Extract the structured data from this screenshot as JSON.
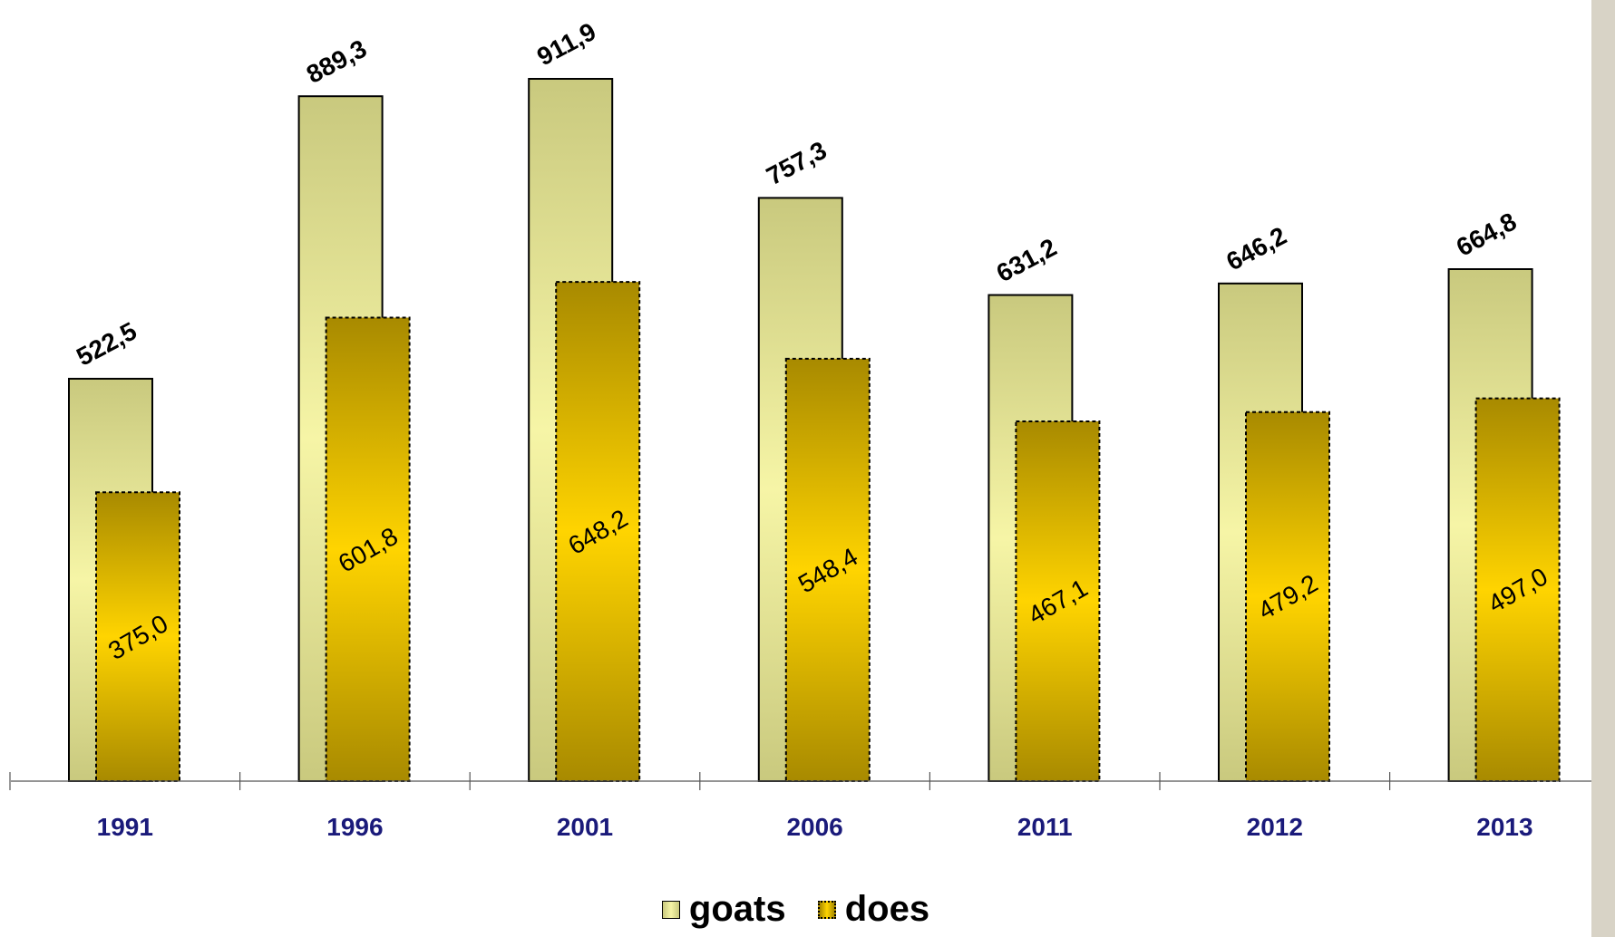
{
  "chart_data": {
    "type": "bar",
    "categories": [
      "1991",
      "1996",
      "2001",
      "2006",
      "2011",
      "2012",
      "2013"
    ],
    "series": [
      {
        "name": "goats",
        "values": [
          522.5,
          889.3,
          911.9,
          757.3,
          631.2,
          646.2,
          664.8
        ],
        "labels": [
          "522,5",
          "889,3",
          "911,9",
          "757,3",
          "631,2",
          "646,2",
          "664,8"
        ]
      },
      {
        "name": "does",
        "values": [
          375.0,
          601.8,
          648.2,
          548.4,
          467.1,
          479.2,
          497.0
        ],
        "labels": [
          "375,0",
          "601,8",
          "648,2",
          "548,4",
          "467,1",
          "479,2",
          "497,0"
        ]
      }
    ],
    "ylim": [
      0,
      1000
    ],
    "title": "",
    "xlabel": "",
    "ylabel": "",
    "grid": false,
    "legend": "bottom",
    "colors": {
      "goats_fill_edge": "#c9c97e",
      "goats_fill_mid": "#f6f5a6",
      "does_fill_edge": "#a88a00",
      "does_fill_mid": "#ffd400",
      "axis_label": "#1a1a7a"
    }
  }
}
